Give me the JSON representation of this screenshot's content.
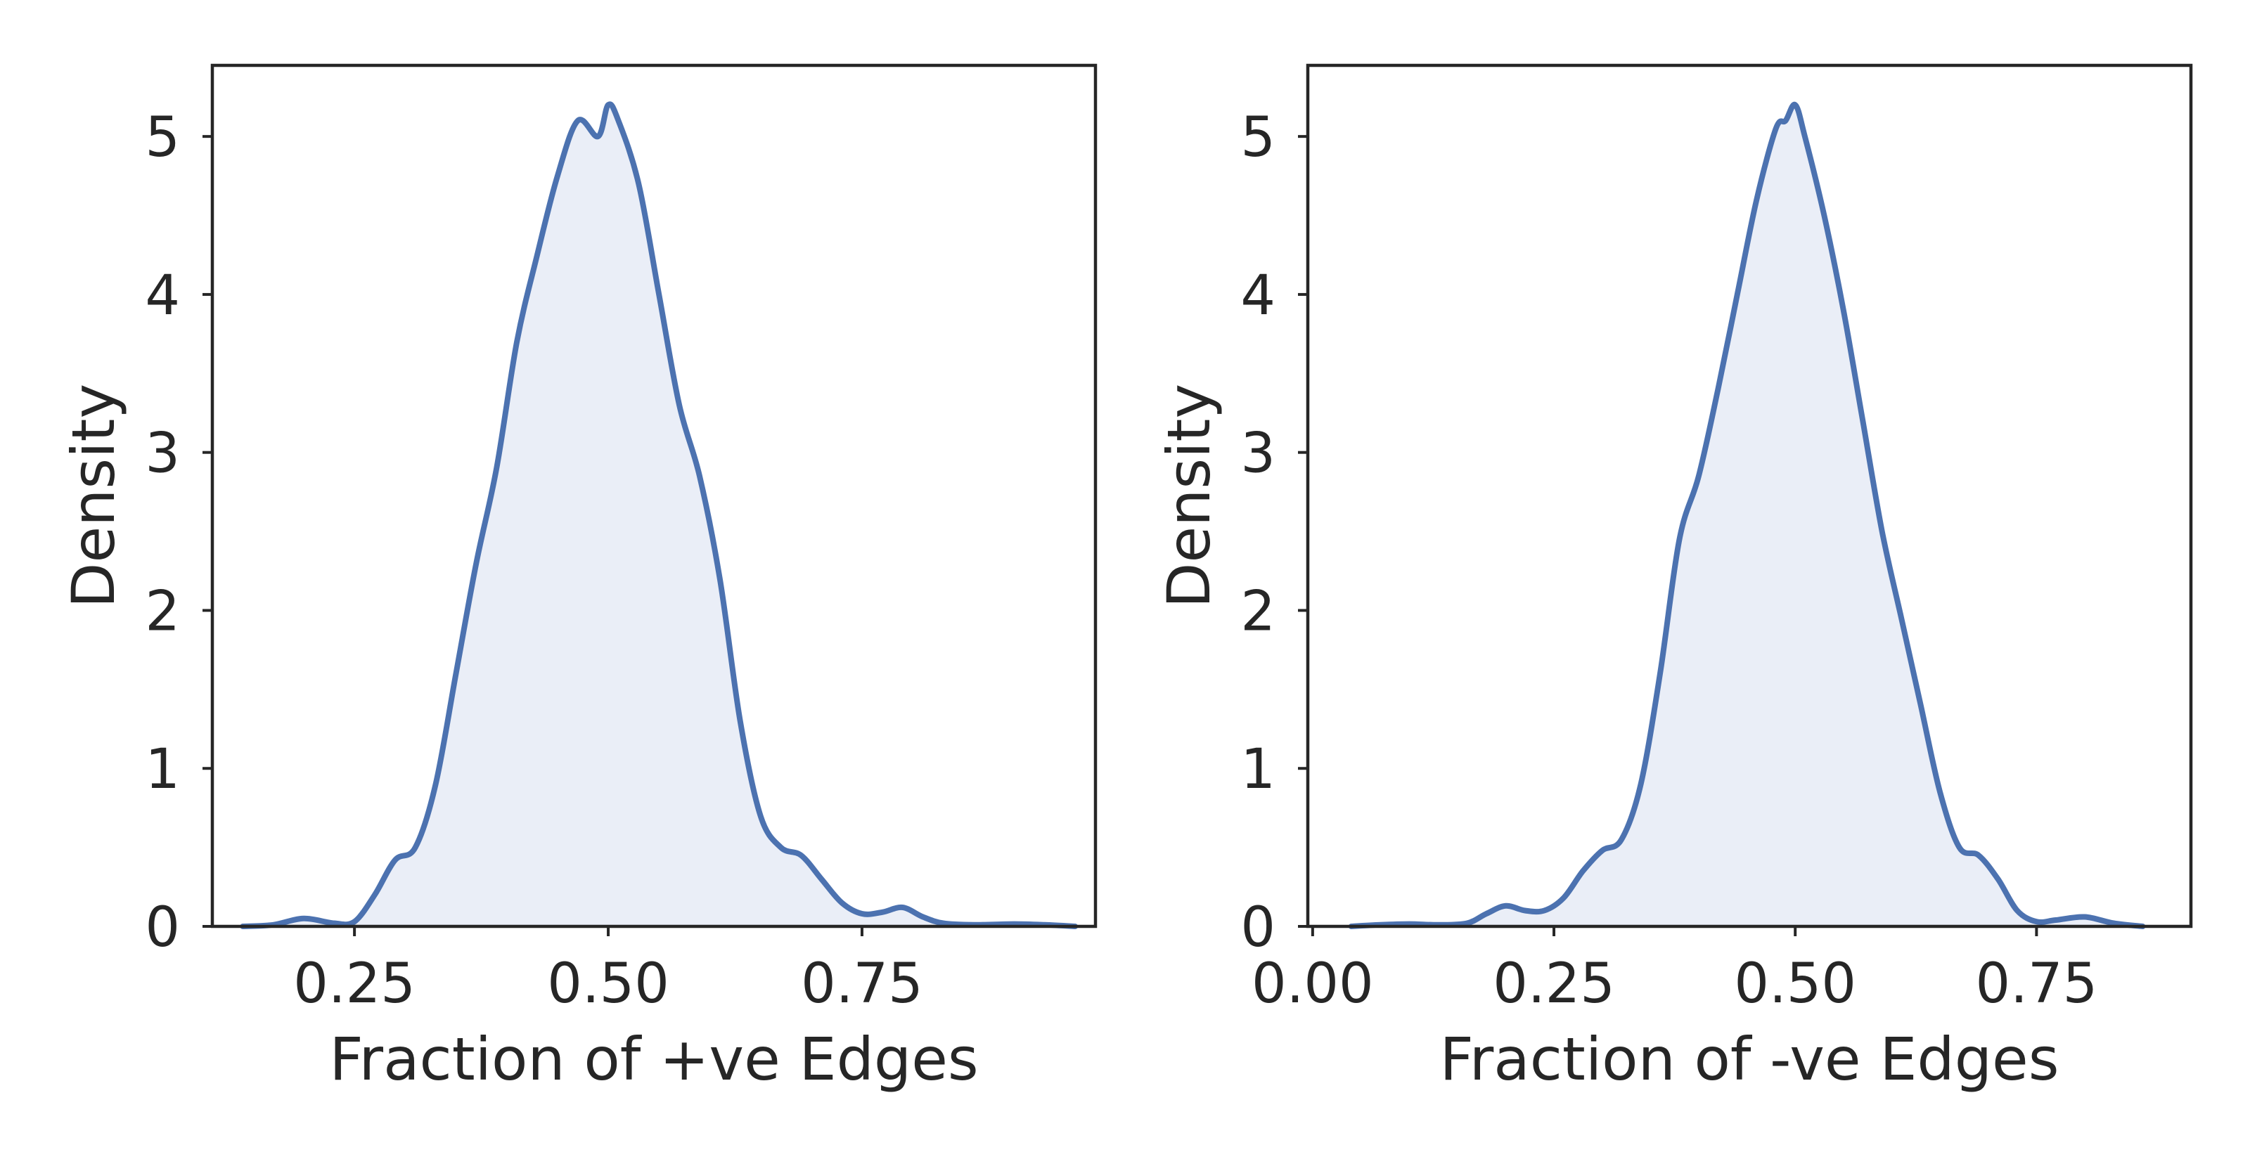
{
  "chart_data": [
    {
      "type": "area",
      "xlabel": "Fraction of +ve Edges",
      "ylabel": "Density",
      "xlim": [
        0.11,
        0.98
      ],
      "ylim": [
        0,
        5.45
      ],
      "xticks": [
        0.25,
        0.5,
        0.75
      ],
      "xtick_labels": [
        "0.25",
        "0.50",
        "0.75"
      ],
      "yticks": [
        0,
        1,
        2,
        3,
        4,
        5
      ],
      "ytick_labels": [
        "0",
        "1",
        "2",
        "3",
        "4",
        "5"
      ],
      "grid": false,
      "color": "#4c72b0",
      "fill_color": "#eaeef7",
      "series": [
        {
          "x": [
            0.14,
            0.17,
            0.2,
            0.23,
            0.25,
            0.27,
            0.29,
            0.31,
            0.33,
            0.35,
            0.37,
            0.39,
            0.41,
            0.43,
            0.45,
            0.47,
            0.49,
            0.5,
            0.51,
            0.53,
            0.55,
            0.57,
            0.59,
            0.61,
            0.63,
            0.65,
            0.67,
            0.69,
            0.71,
            0.73,
            0.75,
            0.77,
            0.79,
            0.81,
            0.83,
            0.86,
            0.9,
            0.93,
            0.96
          ],
          "y": [
            0.0,
            0.01,
            0.05,
            0.02,
            0.03,
            0.2,
            0.42,
            0.5,
            0.9,
            1.6,
            2.3,
            2.9,
            3.7,
            4.25,
            4.75,
            5.1,
            5.0,
            5.2,
            5.1,
            4.7,
            4.0,
            3.3,
            2.85,
            2.2,
            1.3,
            0.7,
            0.5,
            0.45,
            0.3,
            0.15,
            0.08,
            0.09,
            0.12,
            0.06,
            0.02,
            0.01,
            0.015,
            0.01,
            0.0
          ]
        }
      ]
    },
    {
      "type": "area",
      "xlabel": "Fraction of -ve Edges",
      "ylabel": "Density",
      "xlim": [
        -0.005,
        0.91
      ],
      "ylim": [
        0,
        5.45
      ],
      "xticks": [
        0.0,
        0.25,
        0.5,
        0.75
      ],
      "xtick_labels": [
        "0.00",
        "0.25",
        "0.50",
        "0.75"
      ],
      "yticks": [
        0,
        1,
        2,
        3,
        4,
        5
      ],
      "ytick_labels": [
        "0",
        "1",
        "2",
        "3",
        "4",
        "5"
      ],
      "grid": false,
      "color": "#4c72b0",
      "fill_color": "#eaeef7",
      "series": [
        {
          "x": [
            0.04,
            0.07,
            0.1,
            0.13,
            0.16,
            0.18,
            0.2,
            0.22,
            0.24,
            0.26,
            0.28,
            0.3,
            0.32,
            0.34,
            0.36,
            0.38,
            0.4,
            0.42,
            0.44,
            0.46,
            0.48,
            0.49,
            0.5,
            0.51,
            0.53,
            0.55,
            0.57,
            0.59,
            0.61,
            0.63,
            0.65,
            0.67,
            0.69,
            0.71,
            0.73,
            0.75,
            0.77,
            0.8,
            0.83,
            0.86
          ],
          "y": [
            0.0,
            0.01,
            0.015,
            0.01,
            0.02,
            0.08,
            0.13,
            0.1,
            0.1,
            0.18,
            0.35,
            0.48,
            0.55,
            0.9,
            1.6,
            2.45,
            2.85,
            3.4,
            4.0,
            4.6,
            5.05,
            5.1,
            5.2,
            5.0,
            4.5,
            3.9,
            3.2,
            2.5,
            1.95,
            1.4,
            0.85,
            0.5,
            0.45,
            0.3,
            0.1,
            0.03,
            0.04,
            0.06,
            0.02,
            0.0
          ]
        }
      ]
    }
  ]
}
